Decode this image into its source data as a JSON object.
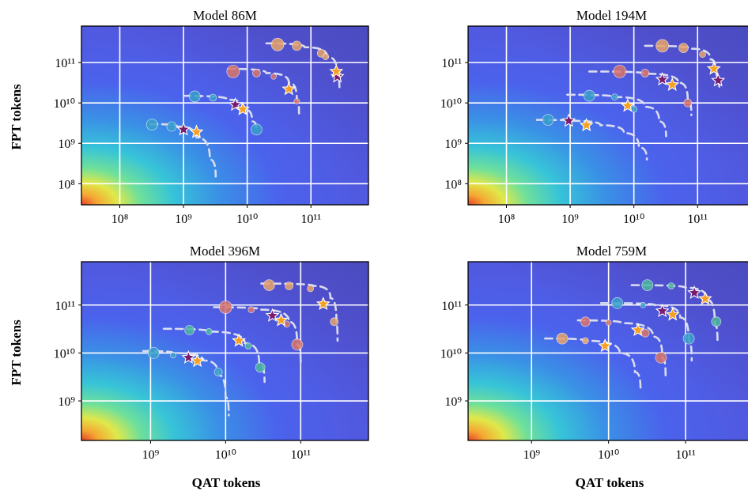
{
  "figure": {
    "ylabel": "FPT tokens",
    "xlabel": "QAT tokens"
  },
  "colors": {
    "background_low": "#4b55e6",
    "point_blue": "#3aa0c9",
    "point_orange": "#e8a36a",
    "point_salmon": "#d9756b",
    "point_teal": "#4bb7a0",
    "star_purple": "#7a1d6f",
    "star_orange": "#f6a020",
    "curve": "#d9dcf0"
  },
  "chart_data": [
    {
      "type": "scatter",
      "title": "Model 86M",
      "x_scale": "log",
      "y_scale": "log",
      "xlim": [
        25000000.0,
        800000000000.0
      ],
      "ylim": [
        30000000.0,
        800000000000.0
      ],
      "xticks": [
        {
          "v": 100000000.0,
          "label": "10⁸"
        },
        {
          "v": 1000000000.0,
          "label": "10⁹"
        },
        {
          "v": 10000000000.0,
          "label": "10¹⁰"
        },
        {
          "v": 100000000000.0,
          "label": "10¹¹"
        }
      ],
      "yticks": [
        {
          "v": 100000000.0,
          "label": "10⁸"
        },
        {
          "v": 1000000000.0,
          "label": "10⁹"
        },
        {
          "v": 10000000000.0,
          "label": "10¹⁰"
        },
        {
          "v": 100000000000.0,
          "label": "10¹¹"
        }
      ],
      "grid": true,
      "curves": [
        {
          "x": [
            300000000.0,
            800000000.0,
            1600000000.0,
            2600000000.0,
            3200000000.0
          ],
          "y": [
            3000000000.0,
            2600000000.0,
            1400000000.0,
            400000000.0,
            150000000.0
          ]
        },
        {
          "x": [
            1000000000.0,
            5000000000.0,
            9000000000.0,
            12000000000.0,
            14000000000.0
          ],
          "y": [
            15000000000.0,
            12000000000.0,
            7000000000.0,
            3500000000.0,
            2100000000.0
          ]
        },
        {
          "x": [
            5000000000.0,
            20000000000.0,
            45000000000.0,
            60000000000.0,
            65000000000.0
          ],
          "y": [
            70000000000.0,
            55000000000.0,
            32000000000.0,
            12000000000.0,
            5500000000.0
          ]
        },
        {
          "x": [
            20000000000.0,
            80000000000.0,
            180000000000.0,
            260000000000.0,
            280000000000.0
          ],
          "y": [
            300000000000.0,
            240000000000.0,
            140000000000.0,
            50000000000.0,
            22000000000.0
          ]
        }
      ],
      "points": [
        {
          "x": 320000000.0,
          "y": 2900000000.0,
          "c": "blue",
          "s": 7
        },
        {
          "x": 650000000.0,
          "y": 2600000000.0,
          "c": "blue",
          "s": 6
        },
        {
          "x": 14000000000.0,
          "y": 2200000000.0,
          "c": "blue",
          "s": 7
        },
        {
          "x": 1500000000.0,
          "y": 14500000000.0,
          "c": "blue",
          "s": 7
        },
        {
          "x": 2900000000.0,
          "y": 13500000000.0,
          "c": "blue",
          "s": 4.5
        },
        {
          "x": 6000000000.0,
          "y": 60000000000.0,
          "c": "salmon",
          "s": 8
        },
        {
          "x": 14000000000.0,
          "y": 55000000000.0,
          "c": "salmon",
          "s": 5
        },
        {
          "x": 26000000000.0,
          "y": 45000000000.0,
          "c": "salmon",
          "s": 3.5
        },
        {
          "x": 60000000000.0,
          "y": 11000000000.0,
          "c": "salmon",
          "s": 3.5
        },
        {
          "x": 30000000000.0,
          "y": 280000000000.0,
          "c": "orange",
          "s": 8
        },
        {
          "x": 60000000000.0,
          "y": 260000000000.0,
          "c": "orange",
          "s": 6
        },
        {
          "x": 145000000000.0,
          "y": 170000000000.0,
          "c": "orange",
          "s": 5
        },
        {
          "x": 170000000000.0,
          "y": 140000000000.0,
          "c": "orange",
          "s": 4
        },
        {
          "x": 270000000000.0,
          "y": 50000000000.0,
          "c": "orange",
          "s": 3.5
        }
      ],
      "stars": [
        {
          "x": 1000000000.0,
          "y": 2200000000.0,
          "c": "purple"
        },
        {
          "x": 1600000000.0,
          "y": 1900000000.0,
          "c": "orange"
        },
        {
          "x": 6500000000.0,
          "y": 9000000000.0,
          "c": "purple"
        },
        {
          "x": 8500000000.0,
          "y": 7000000000.0,
          "c": "orange"
        },
        {
          "x": 45000000000.0,
          "y": 22000000000.0,
          "c": "orange"
        },
        {
          "x": 260000000000.0,
          "y": 45000000000.0,
          "c": "purple"
        },
        {
          "x": 250000000000.0,
          "y": 60000000000.0,
          "c": "orange"
        }
      ]
    },
    {
      "type": "scatter",
      "title": "Model 194M",
      "x_scale": "log",
      "y_scale": "log",
      "xlim": [
        25000000.0,
        800000000000.0
      ],
      "ylim": [
        30000000.0,
        800000000000.0
      ],
      "xticks": [
        {
          "v": 100000000.0,
          "label": "10⁸"
        },
        {
          "v": 1000000000.0,
          "label": "10⁹"
        },
        {
          "v": 10000000000.0,
          "label": "10¹⁰"
        },
        {
          "v": 100000000000.0,
          "label": "10¹¹"
        }
      ],
      "yticks": [
        {
          "v": 100000000.0,
          "label": "10⁸"
        },
        {
          "v": 1000000000.0,
          "label": "10⁹"
        },
        {
          "v": 10000000000.0,
          "label": "10¹⁰"
        },
        {
          "v": 100000000000.0,
          "label": "10¹¹"
        }
      ],
      "grid": true,
      "curves": [
        {
          "x": [
            300000000.0,
            1000000000.0,
            3000000000.0,
            7000000000.0,
            12000000000.0,
            16000000000.0
          ],
          "y": [
            3800000000.0,
            3600000000.0,
            2800000000.0,
            1800000000.0,
            800000000.0,
            400000000.0
          ]
        },
        {
          "x": [
            900000000.0,
            5000000000.0,
            15000000000.0,
            25000000000.0,
            32000000000.0
          ],
          "y": [
            16000000000.0,
            14000000000.0,
            8000000000.0,
            3500000000.0,
            1500000000.0
          ]
        },
        {
          "x": [
            2000000000.0,
            15000000000.0,
            50000000000.0,
            70000000000.0,
            80000000000.0
          ],
          "y": [
            60000000000.0,
            53000000000.0,
            32000000000.0,
            12000000000.0,
            5000000000.0
          ]
        },
        {
          "x": [
            15000000000.0,
            80000000000.0,
            160000000000.0,
            200000000000.0,
            220000000000.0
          ],
          "y": [
            260000000000.0,
            220000000000.0,
            120000000000.0,
            40000000000.0,
            20000000000.0
          ]
        }
      ],
      "points": [
        {
          "x": 450000000.0,
          "y": 3800000000.0,
          "c": "blue",
          "s": 7
        },
        {
          "x": 2000000000.0,
          "y": 15000000000.0,
          "c": "blue",
          "s": 7
        },
        {
          "x": 5000000000.0,
          "y": 14000000000.0,
          "c": "blue",
          "s": 4
        },
        {
          "x": 10000000000.0,
          "y": 7000000000.0,
          "c": "blue",
          "s": 4
        },
        {
          "x": 6000000000.0,
          "y": 60000000000.0,
          "c": "salmon",
          "s": 8
        },
        {
          "x": 15000000000.0,
          "y": 55000000000.0,
          "c": "salmon",
          "s": 5
        },
        {
          "x": 70000000000.0,
          "y": 10000000000.0,
          "c": "salmon",
          "s": 5
        },
        {
          "x": 28000000000.0,
          "y": 260000000000.0,
          "c": "orange",
          "s": 8
        },
        {
          "x": 60000000000.0,
          "y": 230000000000.0,
          "c": "orange",
          "s": 6
        },
        {
          "x": 120000000000.0,
          "y": 160000000000.0,
          "c": "orange",
          "s": 4
        }
      ],
      "stars": [
        {
          "x": 950000000.0,
          "y": 3600000000.0,
          "c": "purple"
        },
        {
          "x": 1800000000.0,
          "y": 2800000000.0,
          "c": "orange"
        },
        {
          "x": 8000000000.0,
          "y": 8500000000.0,
          "c": "orange"
        },
        {
          "x": 28000000000.0,
          "y": 38000000000.0,
          "c": "purple"
        },
        {
          "x": 40000000000.0,
          "y": 28000000000.0,
          "c": "orange"
        },
        {
          "x": 180000000000.0,
          "y": 70000000000.0,
          "c": "orange"
        },
        {
          "x": 210000000000.0,
          "y": 36000000000.0,
          "c": "purple"
        }
      ]
    },
    {
      "type": "scatter",
      "title": "Model 396M",
      "x_scale": "log",
      "y_scale": "log",
      "xlim": [
        120000000.0,
        800000000000.0
      ],
      "ylim": [
        150000000.0,
        800000000000.0
      ],
      "xticks": [
        {
          "v": 1000000000.0,
          "label": "10⁹"
        },
        {
          "v": 10000000000.0,
          "label": "10¹⁰"
        },
        {
          "v": 100000000000.0,
          "label": "10¹¹"
        }
      ],
      "yticks": [
        {
          "v": 1000000000.0,
          "label": "10⁹"
        },
        {
          "v": 10000000000.0,
          "label": "10¹⁰"
        },
        {
          "v": 100000000000.0,
          "label": "10¹¹"
        }
      ],
      "grid": true,
      "curves": [
        {
          "x": [
            800000000.0,
            2000000000.0,
            5000000000.0,
            8000000000.0,
            10000000000.0,
            11000000000.0
          ],
          "y": [
            11000000000.0,
            10000000000.0,
            7000000000.0,
            3500000000.0,
            1200000000.0,
            500000000.0
          ]
        },
        {
          "x": [
            1500000000.0,
            6000000000.0,
            18000000000.0,
            28000000000.0,
            33000000000.0
          ],
          "y": [
            32000000000.0,
            28000000000.0,
            16000000000.0,
            6000000000.0,
            2500000000.0
          ]
        },
        {
          "x": [
            7000000000.0,
            30000000000.0,
            70000000000.0,
            90000000000.0,
            100000000000.0
          ],
          "y": [
            90000000000.0,
            80000000000.0,
            45000000000.0,
            15000000000.0,
            6000000000.0
          ]
        },
        {
          "x": [
            30000000000.0,
            150000000000.0,
            250000000000.0,
            300000000000.0,
            310000000000.0
          ],
          "y": [
            280000000000.0,
            250000000000.0,
            140000000000.0,
            40000000000.0,
            18000000000.0
          ]
        }
      ],
      "points": [
        {
          "x": 1100000000.0,
          "y": 10000000000.0,
          "c": "blue",
          "s": 7
        },
        {
          "x": 2000000000.0,
          "y": 9000000000.0,
          "c": "blue",
          "s": 3.5
        },
        {
          "x": 8000000000.0,
          "y": 4000000000.0,
          "c": "blue",
          "s": 5
        },
        {
          "x": 3300000000.0,
          "y": 30000000000.0,
          "c": "teal",
          "s": 6
        },
        {
          "x": 6000000000.0,
          "y": 28000000000.0,
          "c": "teal",
          "s": 4
        },
        {
          "x": 20000000000.0,
          "y": 14000000000.0,
          "c": "teal",
          "s": 4
        },
        {
          "x": 29000000000.0,
          "y": 5000000000.0,
          "c": "teal",
          "s": 6
        },
        {
          "x": 10000000000.0,
          "y": 90000000000.0,
          "c": "salmon",
          "s": 8
        },
        {
          "x": 22000000000.0,
          "y": 80000000000.0,
          "c": "salmon",
          "s": 4
        },
        {
          "x": 65000000000.0,
          "y": 40000000000.0,
          "c": "salmon",
          "s": 4
        },
        {
          "x": 90000000000.0,
          "y": 15000000000.0,
          "c": "salmon",
          "s": 7
        },
        {
          "x": 38000000000.0,
          "y": 260000000000.0,
          "c": "orange",
          "s": 7
        },
        {
          "x": 70000000000.0,
          "y": 250000000000.0,
          "c": "orange",
          "s": 5
        },
        {
          "x": 135000000000.0,
          "y": 220000000000.0,
          "c": "orange",
          "s": 4
        },
        {
          "x": 280000000000.0,
          "y": 45000000000.0,
          "c": "orange",
          "s": 5
        }
      ],
      "stars": [
        {
          "x": 3200000000.0,
          "y": 8000000000.0,
          "c": "purple"
        },
        {
          "x": 4200000000.0,
          "y": 6800000000.0,
          "c": "orange"
        },
        {
          "x": 15000000000.0,
          "y": 18000000000.0,
          "c": "orange"
        },
        {
          "x": 42000000000.0,
          "y": 60000000000.0,
          "c": "purple"
        },
        {
          "x": 55000000000.0,
          "y": 48000000000.0,
          "c": "orange"
        },
        {
          "x": 200000000000.0,
          "y": 105000000000.0,
          "c": "orange"
        }
      ]
    },
    {
      "type": "scatter",
      "title": "Model 759M",
      "x_scale": "log",
      "y_scale": "log",
      "xlim": [
        150000000.0,
        800000000000.0
      ],
      "ylim": [
        150000000.0,
        800000000000.0
      ],
      "xticks": [
        {
          "v": 1000000000.0,
          "label": "10⁹"
        },
        {
          "v": 10000000000.0,
          "label": "10¹⁰"
        },
        {
          "v": 100000000000.0,
          "label": "10¹¹"
        }
      ],
      "yticks": [
        {
          "v": 1000000000.0,
          "label": "10⁹"
        },
        {
          "v": 10000000000.0,
          "label": "10¹⁰"
        },
        {
          "v": 100000000000.0,
          "label": "10¹¹"
        }
      ],
      "grid": true,
      "curves": [
        {
          "x": [
            1500000000.0,
            5000000000.0,
            14000000000.0,
            22000000000.0,
            26000000000.0
          ],
          "y": [
            20000000000.0,
            18000000000.0,
            10000000000.0,
            4000000000.0,
            1800000000.0
          ]
        },
        {
          "x": [
            4000000000.0,
            15000000000.0,
            38000000000.0,
            50000000000.0,
            55000000000.0
          ],
          "y": [
            48000000000.0,
            42000000000.0,
            22000000000.0,
            8000000000.0,
            3200000000.0
          ]
        },
        {
          "x": [
            8000000000.0,
            40000000000.0,
            85000000000.0,
            110000000000.0,
            120000000000.0
          ],
          "y": [
            110000000000.0,
            100000000000.0,
            55000000000.0,
            18000000000.0,
            7000000000.0
          ]
        },
        {
          "x": [
            20000000000.0,
            100000000000.0,
            190000000000.0,
            240000000000.0,
            260000000000.0
          ],
          "y": [
            260000000000.0,
            230000000000.0,
            130000000000.0,
            40000000000.0,
            16000000000.0
          ]
        }
      ],
      "points": [
        {
          "x": 2500000000.0,
          "y": 20000000000.0,
          "c": "orange",
          "s": 7
        },
        {
          "x": 5000000000.0,
          "y": 18000000000.0,
          "c": "orange",
          "s": 4
        },
        {
          "x": 48000000000.0,
          "y": 8000000000.0,
          "c": "salmon",
          "s": 7
        },
        {
          "x": 5000000000.0,
          "y": 45000000000.0,
          "c": "salmon",
          "s": 6
        },
        {
          "x": 10000000000.0,
          "y": 43000000000.0,
          "c": "salmon",
          "s": 3.5
        },
        {
          "x": 30000000000.0,
          "y": 26000000000.0,
          "c": "salmon",
          "s": 5
        },
        {
          "x": 13000000000.0,
          "y": 110000000000.0,
          "c": "blue",
          "s": 7
        },
        {
          "x": 28000000000.0,
          "y": 100000000000.0,
          "c": "blue",
          "s": 3.5
        },
        {
          "x": 110000000000.0,
          "y": 20000000000.0,
          "c": "blue",
          "s": 7
        },
        {
          "x": 32000000000.0,
          "y": 260000000000.0,
          "c": "teal",
          "s": 7
        },
        {
          "x": 65000000000.0,
          "y": 250000000000.0,
          "c": "teal",
          "s": 4
        },
        {
          "x": 250000000000.0,
          "y": 45000000000.0,
          "c": "teal",
          "s": 6
        }
      ],
      "stars": [
        {
          "x": 9000000000.0,
          "y": 14000000000.0,
          "c": "orange"
        },
        {
          "x": 24000000000.0,
          "y": 30000000000.0,
          "c": "orange"
        },
        {
          "x": 50000000000.0,
          "y": 75000000000.0,
          "c": "purple"
        },
        {
          "x": 68000000000.0,
          "y": 63000000000.0,
          "c": "orange"
        },
        {
          "x": 130000000000.0,
          "y": 180000000000.0,
          "c": "purple"
        },
        {
          "x": 180000000000.0,
          "y": 135000000000.0,
          "c": "orange"
        }
      ]
    }
  ]
}
